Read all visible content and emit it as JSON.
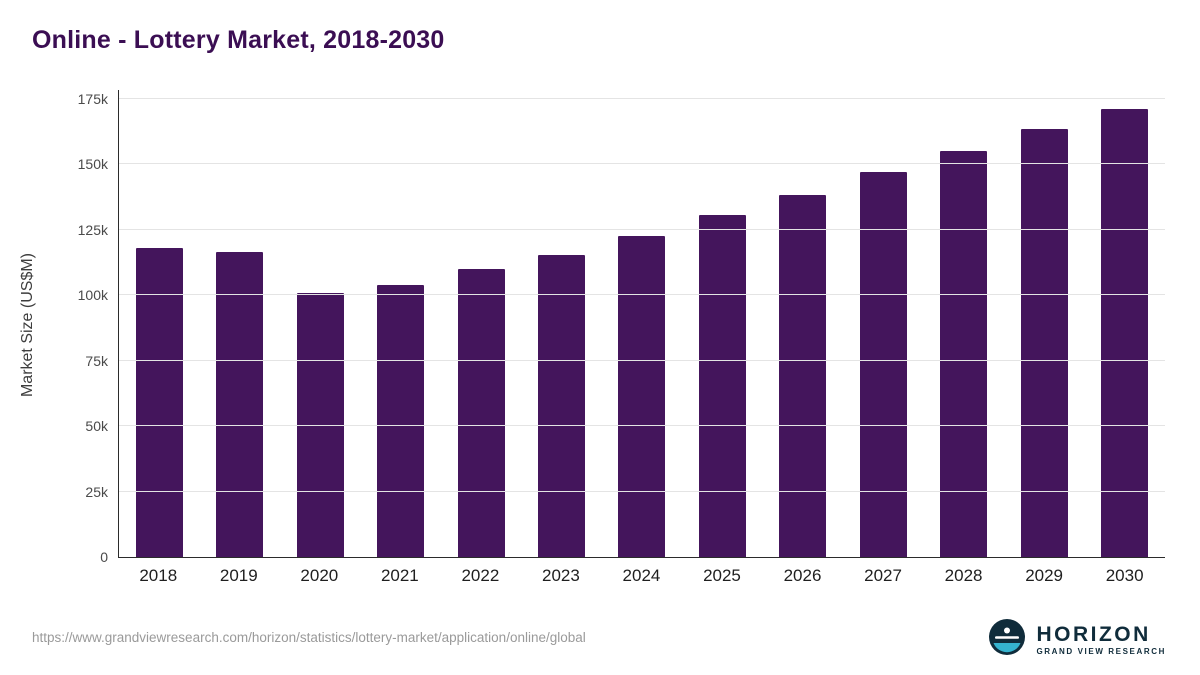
{
  "page": {
    "title": "Online - Lottery Market, 2018-2030",
    "source_url": "https://www.grandviewresearch.com/horizon/statistics/lottery-market/application/online/global"
  },
  "branding": {
    "name": "HORIZON",
    "subtitle": "GRAND VIEW RESEARCH",
    "logo_dark": "#102c3b",
    "logo_teal": "#35b3cf"
  },
  "chart_data": {
    "type": "bar",
    "title": "Online - Lottery Market, 2018-2030",
    "categories": [
      "2018",
      "2019",
      "2020",
      "2021",
      "2022",
      "2023",
      "2024",
      "2025",
      "2026",
      "2027",
      "2028",
      "2029",
      "2030"
    ],
    "values": [
      118000,
      116500,
      101000,
      104000,
      110000,
      115500,
      122500,
      130500,
      138500,
      147000,
      155000,
      163500,
      171000
    ],
    "xlabel": "",
    "ylabel": "Market Size (US$M)",
    "ylim": [
      0,
      175000
    ],
    "yticks": [
      0,
      25000,
      50000,
      75000,
      100000,
      125000,
      150000,
      175000
    ],
    "ytick_labels": [
      "0",
      "25k",
      "50k",
      "75k",
      "100k",
      "125k",
      "150k",
      "175k"
    ],
    "grid": true,
    "legend": "none",
    "bar_color": "#44155c"
  }
}
